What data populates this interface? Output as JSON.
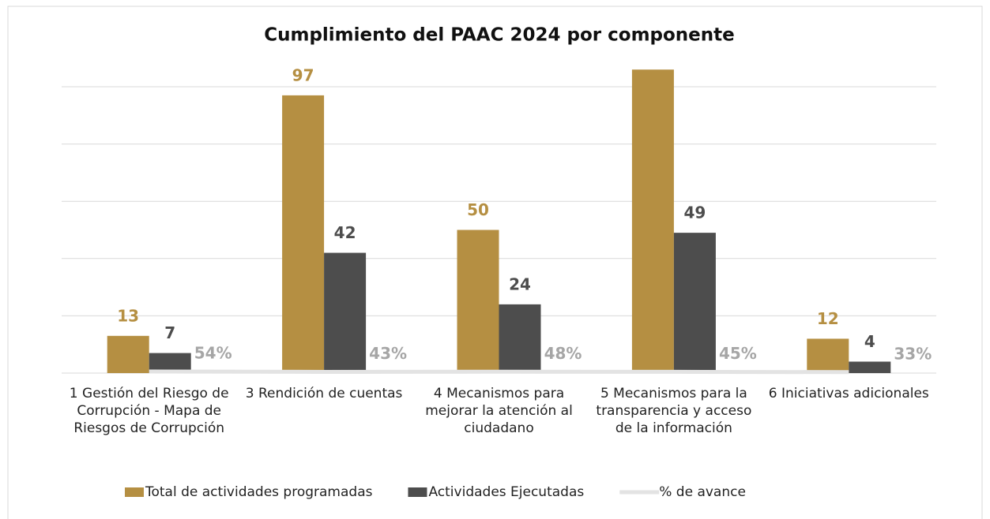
{
  "chart_data": {
    "type": "bar",
    "title": "Cumplimiento del PAAC 2024 por componente",
    "categories": [
      "1 Gestión del Riesgo de Corrupción - Mapa de Riesgos de Corrupción",
      "3 Rendición de cuentas",
      "4 Mecanismos para mejorar la atención al ciudadano",
      "5 Mecanismos para la transparencia y acceso de la información",
      "6 Iniciativas adicionales"
    ],
    "series": [
      {
        "name": "Total de actividades programadas",
        "color": "#b58f42",
        "type": "bar",
        "values": [
          13,
          97,
          50,
          106,
          12
        ],
        "value_labels": [
          "13",
          "97",
          "50",
          null,
          "12"
        ]
      },
      {
        "name": "Actividades Ejecutadas",
        "color": "#4d4d4d",
        "type": "bar",
        "values": [
          7,
          42,
          24,
          49,
          4
        ]
      },
      {
        "name": "% de avance",
        "color": "#e3e3e3",
        "type": "line",
        "values": [
          0.54,
          0.43,
          0.48,
          0.45,
          0.33
        ],
        "value_labels": [
          "54%",
          "43%",
          "48%",
          "45%",
          "33%"
        ]
      }
    ],
    "ylim": [
      0,
      100
    ],
    "yticks": [
      0,
      20,
      40,
      60,
      80,
      100
    ],
    "grid": true,
    "legend": "bottom"
  }
}
